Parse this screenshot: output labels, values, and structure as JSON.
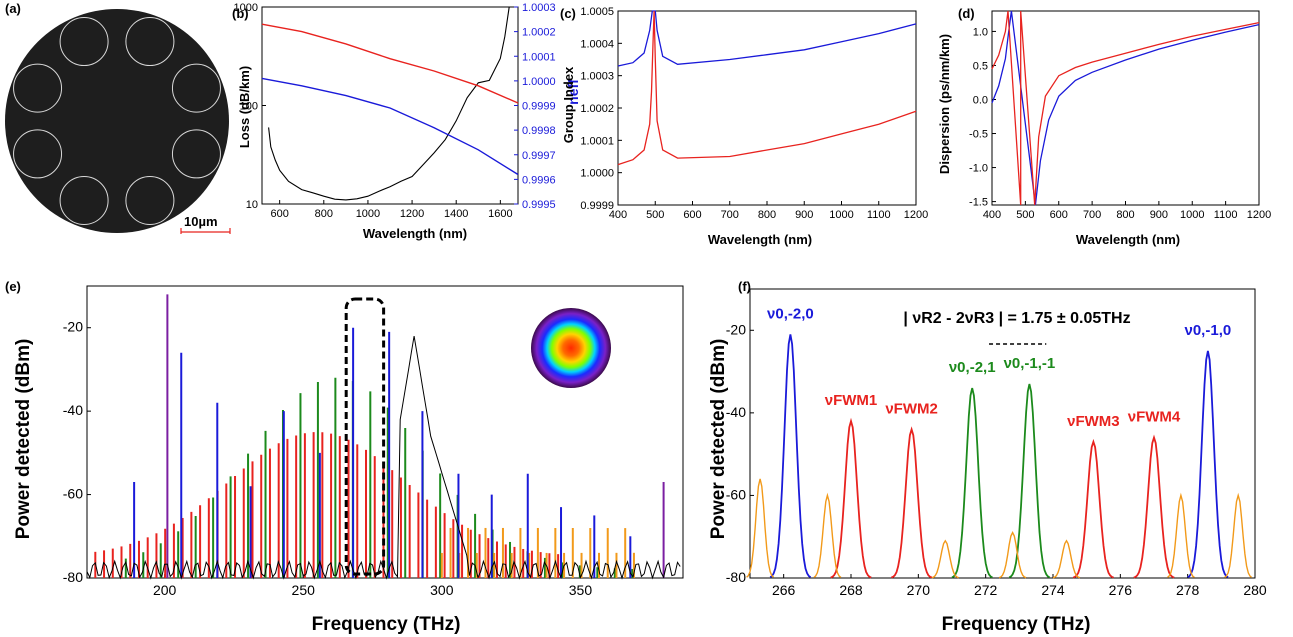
{
  "panel_labels": {
    "a": "(a)",
    "b": "(b)",
    "c": "(c)",
    "d": "(d)",
    "e": "(e)",
    "f": "(f)"
  },
  "panel_a": {
    "scalebar_label": "10µm"
  },
  "colors": {
    "red": "#e8231f",
    "blue": "#1a1ad9",
    "green": "#1c8a1c",
    "orange": "#f29a1a",
    "purple": "#7b1fa2",
    "black": "#000000"
  },
  "chart_data": [
    {
      "id": "b",
      "type": "line",
      "xlabel": "Wavelength (nm)",
      "ylabel": "Loss (dB/km)",
      "ylabel2": "neff",
      "xlim": [
        520,
        1680
      ],
      "ylim": [
        10,
        1000
      ],
      "ylim2": [
        0.9995,
        1.0003
      ],
      "yscale": "log",
      "xticks": [
        "600",
        "800",
        "1000",
        "1200",
        "1400",
        "1600"
      ],
      "yticks": [
        "10",
        "100",
        "1000"
      ],
      "y2ticks": [
        "0.9995",
        "0.9996",
        "0.9997",
        "0.9998",
        "0.9999",
        "1.0000",
        "1.0001",
        "1.0002",
        "1.0003"
      ],
      "series": [
        {
          "axis": "y",
          "color": "#000000",
          "points": [
            [
              550,
              60
            ],
            [
              560,
              38
            ],
            [
              580,
              28
            ],
            [
              600,
              22
            ],
            [
              640,
              17
            ],
            [
              700,
              14
            ],
            [
              750,
              13
            ],
            [
              800,
              12
            ],
            [
              850,
              11.2
            ],
            [
              900,
              11
            ],
            [
              950,
              11.3
            ],
            [
              1000,
              12
            ],
            [
              1050,
              13.5
            ],
            [
              1100,
              15
            ],
            [
              1150,
              17
            ],
            [
              1200,
              19
            ],
            [
              1250,
              25
            ],
            [
              1300,
              33
            ],
            [
              1350,
              45
            ],
            [
              1400,
              70
            ],
            [
              1450,
              120
            ],
            [
              1500,
              170
            ],
            [
              1550,
              180
            ],
            [
              1600,
              300
            ],
            [
              1620,
              500
            ],
            [
              1640,
              1000
            ]
          ]
        },
        {
          "axis": "y2",
          "color": "#e8231f",
          "points": [
            [
              520,
              1.00023
            ],
            [
              700,
              1.0002
            ],
            [
              900,
              1.00015
            ],
            [
              1100,
              1.00009
            ],
            [
              1300,
              1.00004
            ],
            [
              1500,
              0.99998
            ],
            [
              1680,
              0.99991
            ]
          ]
        },
        {
          "axis": "y2",
          "color": "#1a1ad9",
          "points": [
            [
              520,
              1.00001
            ],
            [
              700,
              0.99998
            ],
            [
              900,
              0.99994
            ],
            [
              1100,
              0.99989
            ],
            [
              1300,
              0.99981
            ],
            [
              1500,
              0.99972
            ],
            [
              1680,
              0.99962
            ]
          ]
        }
      ]
    },
    {
      "id": "c",
      "type": "line",
      "xlabel": "Wavelength (nm)",
      "ylabel": "Group Index",
      "xlim": [
        400,
        1200
      ],
      "ylim": [
        0.9999,
        1.0005
      ],
      "xticks": [
        "400",
        "500",
        "600",
        "700",
        "800",
        "900",
        "1000",
        "1100",
        "1200"
      ],
      "yticks": [
        "0.9999",
        "1.0000",
        "1.0001",
        "1.0002",
        "1.0003",
        "1.0004",
        "1.0005"
      ],
      "series": [
        {
          "color": "#1a1ad9",
          "points": [
            [
              400,
              1.00033
            ],
            [
              440,
              1.00034
            ],
            [
              470,
              1.00037
            ],
            [
              485,
              1.00044
            ],
            [
              492,
              1.0005
            ],
            [
              500,
              1.0005
            ],
            [
              505,
              1.00044
            ],
            [
              520,
              1.00036
            ],
            [
              560,
              1.000335
            ],
            [
              700,
              1.00035
            ],
            [
              800,
              1.000365
            ],
            [
              900,
              1.00038
            ],
            [
              1000,
              1.000405
            ],
            [
              1100,
              1.00043
            ],
            [
              1200,
              1.00046
            ]
          ]
        },
        {
          "color": "#e8231f",
          "points": [
            [
              400,
              1.000025
            ],
            [
              440,
              1.00004
            ],
            [
              470,
              1.00007
            ],
            [
              485,
              1.00015
            ],
            [
              490,
              1.00025
            ],
            [
              494,
              1.0004
            ],
            [
              497,
              1.0005
            ],
            [
              500,
              1.00035
            ],
            [
              505,
              1.00016
            ],
            [
              520,
              1.00007
            ],
            [
              560,
              1.000045
            ],
            [
              700,
              1.00005
            ],
            [
              800,
              1.00007
            ],
            [
              900,
              1.00009
            ],
            [
              1000,
              1.00012
            ],
            [
              1100,
              1.00015
            ],
            [
              1200,
              1.00019
            ]
          ]
        }
      ]
    },
    {
      "id": "d",
      "type": "line",
      "xlabel": "Wavelength (nm)",
      "ylabel": "Dispersion (ps/nm/km)",
      "xlim": [
        400,
        1200
      ],
      "ylim": [
        -1.55,
        1.3
      ],
      "xticks": [
        "400",
        "500",
        "600",
        "700",
        "800",
        "900",
        "1000",
        "1100",
        "1200"
      ],
      "yticks": [
        "-1.5",
        "-1.0",
        "-0.5",
        "0.0",
        "0.5",
        "1.0"
      ],
      "series": [
        {
          "color": "#1a1ad9",
          "points": [
            [
              400,
              -0.05
            ],
            [
              420,
              0.2
            ],
            [
              440,
              0.6
            ],
            [
              450,
              1.0
            ],
            [
              458,
              1.3
            ],
            [
              530,
              -1.55
            ],
            [
              545,
              -0.9
            ],
            [
              570,
              -0.3
            ],
            [
              600,
              0.05
            ],
            [
              650,
              0.28
            ],
            [
              700,
              0.4
            ],
            [
              800,
              0.58
            ],
            [
              900,
              0.74
            ],
            [
              1000,
              0.87
            ],
            [
              1100,
              0.99
            ],
            [
              1200,
              1.1
            ]
          ]
        },
        {
          "color": "#e8231f",
          "points": [
            [
              400,
              0.45
            ],
            [
              420,
              0.65
            ],
            [
              440,
              1.0
            ],
            [
              448,
              1.3
            ],
            [
              486,
              -1.55
            ],
            [
              486,
              1.3
            ],
            [
              528,
              -1.55
            ],
            [
              540,
              -0.55
            ],
            [
              560,
              0.05
            ],
            [
              600,
              0.35
            ],
            [
              650,
              0.47
            ],
            [
              700,
              0.55
            ],
            [
              800,
              0.68
            ],
            [
              900,
              0.81
            ],
            [
              1000,
              0.93
            ],
            [
              1100,
              1.03
            ],
            [
              1200,
              1.13
            ]
          ]
        }
      ]
    },
    {
      "id": "e",
      "type": "line",
      "xlabel": "Frequency (THz)",
      "ylabel": "Power detected (dBm)",
      "xlim": [
        172,
        387
      ],
      "ylim": [
        -80,
        -10
      ],
      "xticks": [
        "200",
        "250",
        "300",
        "350"
      ],
      "yticks": [
        "-80",
        "-60",
        "-40",
        "-20"
      ],
      "lines": [
        {
          "color": "#1a1ad9",
          "x": [
            189,
            206,
            219,
            231,
            243,
            256,
            268,
            281,
            293,
            306,
            318,
            331,
            343,
            355,
            368
          ],
          "y": [
            -57,
            -26,
            -38,
            -58,
            -40,
            -50,
            -20,
            -21,
            -40,
            -55,
            -60,
            -55,
            -63,
            -65,
            -70
          ]
        },
        {
          "color": "#7b1fa2",
          "x": [
            201,
            380
          ],
          "y": [
            -12,
            -57
          ]
        }
      ]
    },
    {
      "id": "f",
      "type": "line",
      "xlabel": "Frequency (THz)",
      "ylabel": "Power detected (dBm)",
      "xlim": [
        265,
        280
      ],
      "ylim": [
        -80,
        -10
      ],
      "xticks": [
        "266",
        "268",
        "270",
        "272",
        "274",
        "276",
        "278",
        "280"
      ],
      "yticks": [
        "-80",
        "-60",
        "-40",
        "-20"
      ],
      "series": [
        {
          "name": "ν0,-2,0",
          "color": "#1a1ad9",
          "center": 266.2,
          "peak": -21
        },
        {
          "name": "ν0,-1,0",
          "color": "#1a1ad9",
          "center": 278.6,
          "peak": -25
        },
        {
          "name": "νFWM1",
          "color": "#e8231f",
          "center": 268.0,
          "peak": -42
        },
        {
          "name": "νFWM2",
          "color": "#e8231f",
          "center": 269.8,
          "peak": -44
        },
        {
          "name": "νFWM3",
          "color": "#e8231f",
          "center": 275.2,
          "peak": -47
        },
        {
          "name": "νFWM4",
          "color": "#e8231f",
          "center": 277.0,
          "peak": -46
        },
        {
          "name": "ν0,-2,1",
          "color": "#1c8a1c",
          "center": 271.6,
          "peak": -34
        },
        {
          "name": "ν0,-1,-1",
          "color": "#1c8a1c",
          "center": 273.3,
          "peak": -33
        }
      ],
      "annotation": "| νR2 - 2νR3 | = 1.75 ± 0.05THz"
    }
  ]
}
